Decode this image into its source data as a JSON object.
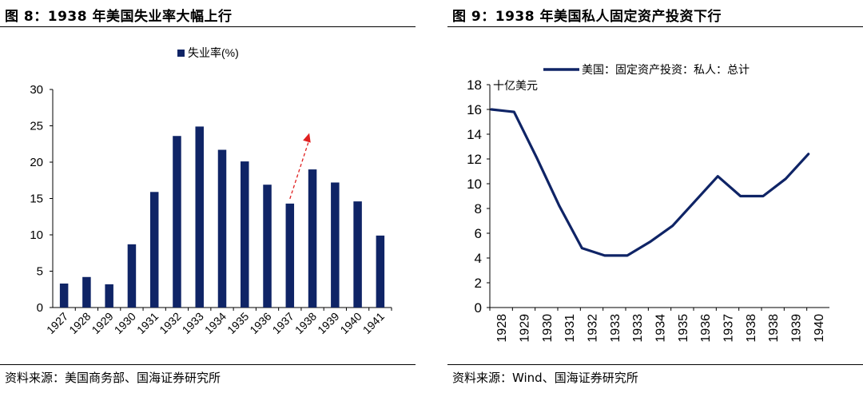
{
  "left": {
    "title": "图 8：1938 年美国失业率大幅上行",
    "source": "资料来源：美国商务部、国海证券研究所"
  },
  "right": {
    "title": "图 9：1938 年美国私人固定资产投资下行",
    "source": "资料来源：Wind、国海证券研究所"
  },
  "chart_data": [
    {
      "type": "bar",
      "categories": [
        "1927",
        "1928",
        "1929",
        "1930",
        "1931",
        "1932",
        "1933",
        "1934",
        "1935",
        "1936",
        "1937",
        "1938",
        "1939",
        "1940",
        "1941"
      ],
      "series": [
        {
          "name": "失业率(%)",
          "values": [
            3.3,
            4.2,
            3.2,
            8.7,
            15.9,
            23.6,
            24.9,
            21.7,
            20.1,
            16.9,
            14.3,
            19.0,
            17.2,
            14.6,
            9.9
          ],
          "color": "#0f2466"
        }
      ],
      "ylim": [
        0,
        30
      ],
      "yticks": [
        0,
        5,
        10,
        15,
        20,
        25,
        30
      ],
      "legend": "top-center",
      "annotation": {
        "type": "arrow",
        "from": "1937",
        "to": "1938",
        "color": "#e02020",
        "style": "dashed"
      },
      "grid": false
    },
    {
      "type": "line",
      "ylabel": "十亿美元",
      "x": [
        "1928",
        "1929",
        "1930",
        "1931",
        "1932",
        "1933",
        "1933",
        "1934",
        "1935",
        "1936",
        "1937",
        "1938",
        "1938",
        "1939",
        "1940"
      ],
      "series": [
        {
          "name": "美国：固定资产投资：私人：总计",
          "values": [
            16.0,
            15.8,
            12.1,
            8.2,
            4.8,
            4.2,
            4.2,
            5.3,
            6.6,
            8.6,
            10.6,
            9.0,
            9.0,
            10.4,
            12.4
          ],
          "color": "#0f2466"
        }
      ],
      "ylim": [
        0,
        18
      ],
      "yticks": [
        0,
        2,
        4,
        6,
        8,
        10,
        12,
        14,
        16,
        18
      ],
      "legend": "top-right",
      "grid": false
    }
  ]
}
